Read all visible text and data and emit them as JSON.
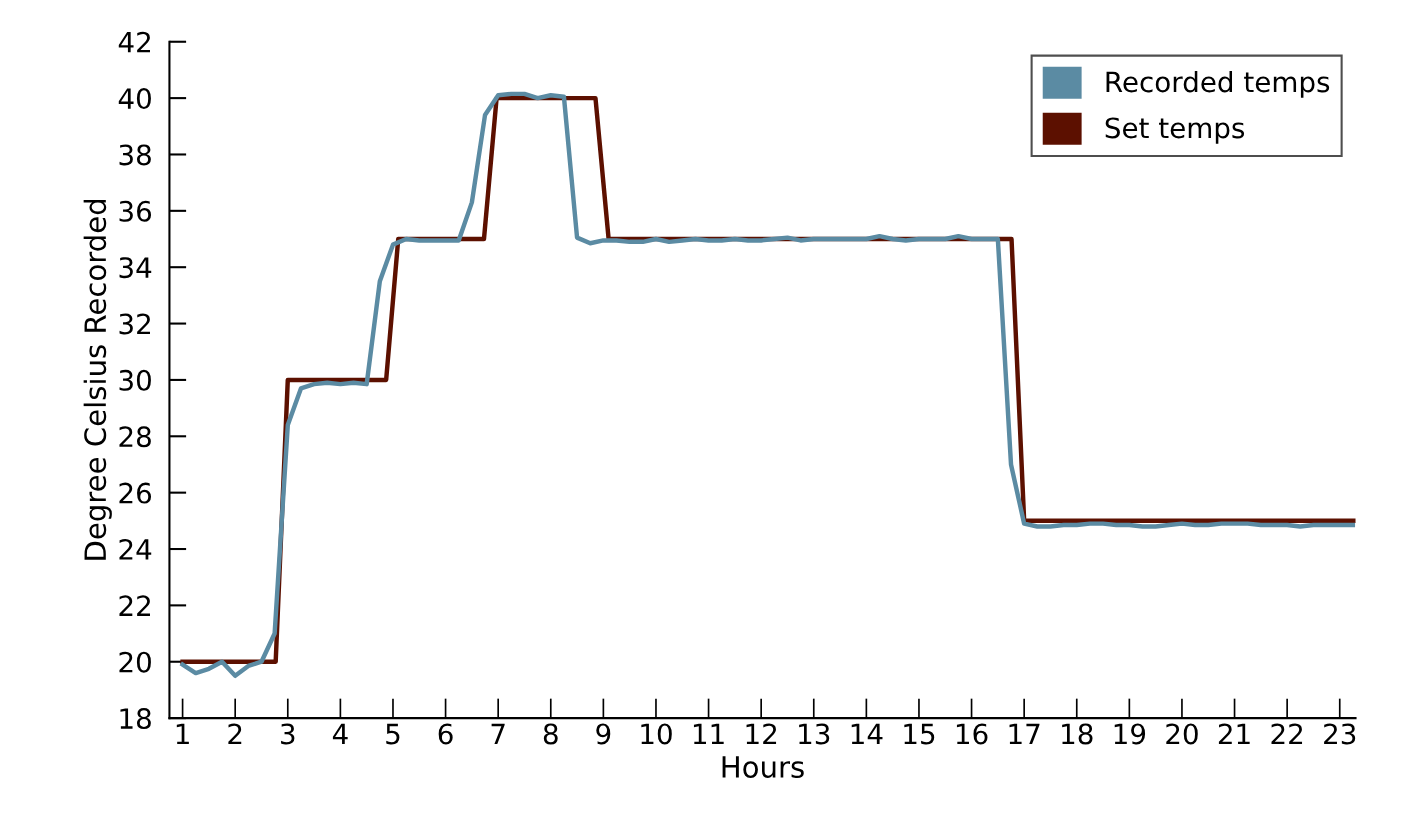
{
  "chart_data": {
    "type": "line",
    "xlabel": "Hours",
    "ylabel": "Degree Celsius Recorded",
    "xlim": [
      0.75,
      23.3
    ],
    "xticks": [
      1,
      2,
      3,
      4,
      5,
      6,
      7,
      8,
      9,
      10,
      11,
      12,
      13,
      14,
      15,
      16,
      17,
      18,
      19,
      20,
      21,
      22,
      23
    ],
    "ylim": [
      18,
      42
    ],
    "yticks": [
      18,
      20,
      22,
      24,
      26,
      28,
      30,
      32,
      34,
      36,
      38,
      40,
      42
    ],
    "grid": false,
    "legend": "top right",
    "marker": "none",
    "line_style": "solid",
    "series": [
      {
        "name": "Recorded temps",
        "color": "#5b8ba3",
        "x": [
          1.0,
          1.25,
          1.5,
          1.75,
          2.0,
          2.25,
          2.5,
          2.75,
          3.0,
          3.25,
          3.5,
          3.75,
          4.0,
          4.25,
          4.5,
          4.75,
          5.0,
          5.25,
          5.5,
          5.75,
          6.0,
          6.25,
          6.5,
          6.75,
          7.0,
          7.25,
          7.5,
          7.75,
          8.0,
          8.25,
          8.5,
          8.75,
          9.0,
          9.25,
          9.5,
          9.75,
          10.0,
          10.25,
          10.5,
          10.75,
          11.0,
          11.25,
          11.5,
          11.75,
          12.0,
          12.25,
          12.5,
          12.75,
          13.0,
          13.25,
          13.5,
          13.75,
          14.0,
          14.25,
          14.5,
          14.75,
          15.0,
          15.25,
          15.5,
          15.75,
          16.0,
          16.25,
          16.5,
          16.75,
          17.0,
          17.25,
          17.5,
          17.75,
          18.0,
          18.25,
          18.5,
          18.75,
          19.0,
          19.25,
          19.5,
          19.75,
          20.0,
          20.25,
          20.5,
          20.75,
          21.0,
          21.25,
          21.5,
          21.75,
          22.0,
          22.25,
          22.5,
          22.75,
          23.0,
          23.25
        ],
        "values": [
          19.9,
          19.6,
          19.75,
          20.0,
          19.5,
          19.85,
          20.0,
          21.0,
          28.4,
          29.7,
          29.85,
          29.9,
          29.85,
          29.9,
          29.85,
          33.5,
          34.8,
          35.0,
          34.95,
          34.95,
          34.95,
          34.95,
          36.3,
          39.4,
          40.1,
          40.15,
          40.15,
          40.0,
          40.1,
          40.05,
          35.05,
          34.85,
          34.95,
          34.95,
          34.9,
          34.9,
          35.0,
          34.9,
          34.95,
          35.0,
          34.95,
          34.95,
          35.0,
          34.95,
          34.95,
          35.0,
          35.05,
          34.95,
          35.0,
          35.0,
          35.0,
          35.0,
          35.0,
          35.1,
          35.0,
          34.95,
          35.0,
          35.0,
          35.0,
          35.1,
          35.0,
          35.0,
          35.0,
          27.0,
          24.9,
          24.8,
          24.8,
          24.85,
          24.85,
          24.9,
          24.9,
          24.85,
          24.85,
          24.8,
          24.8,
          24.85,
          24.9,
          24.85,
          24.85,
          24.9,
          24.9,
          24.9,
          24.85,
          24.85,
          24.85,
          24.8,
          24.85,
          24.85,
          24.85,
          24.85
        ]
      },
      {
        "name": "Set temps",
        "color": "#5c1000",
        "x": [
          1.0,
          2.77,
          3.0,
          4.87,
          5.1,
          6.73,
          6.97,
          8.85,
          9.1,
          16.76,
          17.0,
          23.3
        ],
        "values": [
          20,
          20,
          30,
          30,
          35,
          35,
          40,
          40,
          35,
          35,
          25,
          25
        ]
      }
    ]
  }
}
